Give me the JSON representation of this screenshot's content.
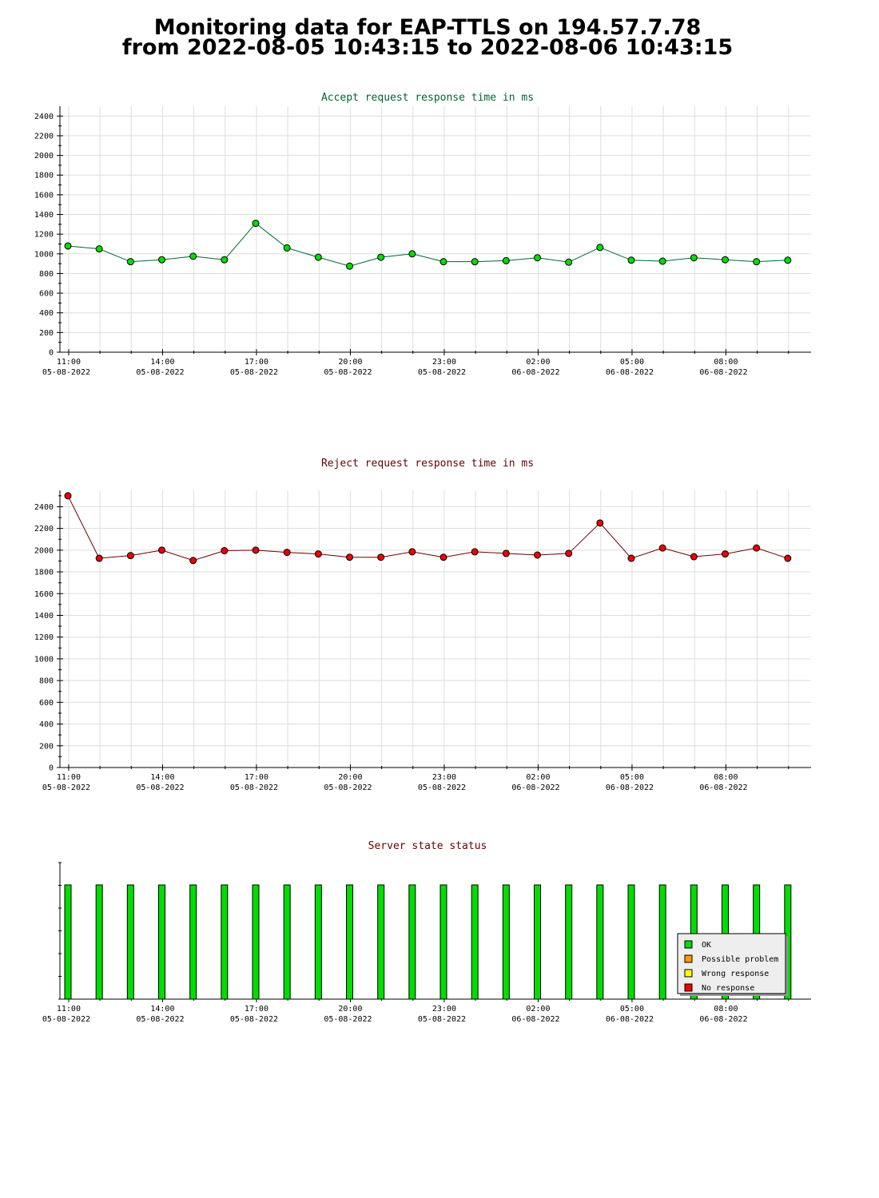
{
  "page": {
    "title_line1": "Monitoring data for EAP-TTLS on 194.57.7.78",
    "title_line2": "from 2022-08-05 10:43:15 to 2022-08-06 10:43:15"
  },
  "colors": {
    "accept_title": "#006633",
    "reject_title": "#660000",
    "status_title": "#660000",
    "accept_line": "#006633",
    "accept_marker": "#00dd00",
    "reject_line": "#660000",
    "reject_marker": "#ee0000",
    "grid": "#dddddd",
    "ok": "#00dd00",
    "possible_problem": "#ff9900",
    "wrong_response": "#ffff00",
    "no_response": "#ee0000"
  },
  "x_axis": {
    "times": [
      "11:00",
      "14:00",
      "17:00",
      "20:00",
      "23:00",
      "02:00",
      "05:00",
      "08:00"
    ],
    "dates": [
      "05-08-2022",
      "05-08-2022",
      "05-08-2022",
      "05-08-2022",
      "05-08-2022",
      "06-08-2022",
      "06-08-2022",
      "06-08-2022"
    ]
  },
  "chart_data": [
    {
      "type": "line",
      "title": "Accept request response time in ms",
      "x": [
        "2022-08-05 10:43:15",
        "2022-08-05 11:43:15",
        "2022-08-05 12:43:15",
        "2022-08-05 13:43:15",
        "2022-08-05 14:43:15",
        "2022-08-05 15:43:15",
        "2022-08-05 16:43:15",
        "2022-08-05 17:43:15",
        "2022-08-05 18:43:15",
        "2022-08-05 19:43:15",
        "2022-08-05 20:43:15",
        "2022-08-05 21:43:15",
        "2022-08-05 22:43:15",
        "2022-08-05 23:43:15",
        "2022-08-06 00:43:15",
        "2022-08-06 01:43:15",
        "2022-08-06 02:43:15",
        "2022-08-06 03:43:15",
        "2022-08-06 04:43:15",
        "2022-08-06 05:43:15",
        "2022-08-06 06:43:15",
        "2022-08-06 07:43:15",
        "2022-08-06 08:43:15",
        "2022-08-06 09:43:15"
      ],
      "values": [
        1080,
        1050,
        920,
        940,
        975,
        940,
        1310,
        1060,
        965,
        875,
        965,
        1000,
        920,
        920,
        930,
        960,
        915,
        1065,
        935,
        925,
        960,
        940,
        920,
        935
      ],
      "ylim": [
        0,
        2500
      ],
      "yticks": [
        0,
        200,
        400,
        600,
        800,
        1000,
        1200,
        1400,
        1600,
        1800,
        2000,
        2200,
        2400
      ],
      "grid": true
    },
    {
      "type": "line",
      "title": "Reject request response time in ms",
      "x": [
        "2022-08-05 10:43:15",
        "2022-08-05 11:43:15",
        "2022-08-05 12:43:15",
        "2022-08-05 13:43:15",
        "2022-08-05 14:43:15",
        "2022-08-05 15:43:15",
        "2022-08-05 16:43:15",
        "2022-08-05 17:43:15",
        "2022-08-05 18:43:15",
        "2022-08-05 19:43:15",
        "2022-08-05 20:43:15",
        "2022-08-05 21:43:15",
        "2022-08-05 22:43:15",
        "2022-08-05 23:43:15",
        "2022-08-06 00:43:15",
        "2022-08-06 01:43:15",
        "2022-08-06 02:43:15",
        "2022-08-06 03:43:15",
        "2022-08-06 04:43:15",
        "2022-08-06 05:43:15",
        "2022-08-06 06:43:15",
        "2022-08-06 07:43:15",
        "2022-08-06 08:43:15",
        "2022-08-06 09:43:15"
      ],
      "values": [
        2500,
        1925,
        1950,
        2000,
        1905,
        1995,
        2000,
        1980,
        1965,
        1935,
        1935,
        1985,
        1935,
        1985,
        1970,
        1955,
        1970,
        2250,
        1925,
        2020,
        1940,
        1965,
        2020,
        1925
      ],
      "ylim": [
        0,
        2550
      ],
      "yticks": [
        0,
        200,
        400,
        600,
        800,
        1000,
        1200,
        1400,
        1600,
        1800,
        2000,
        2200,
        2400
      ],
      "grid": true
    },
    {
      "type": "bar",
      "title": "Server state status",
      "x": [
        "2022-08-05 10:43:15",
        "2022-08-05 11:43:15",
        "2022-08-05 12:43:15",
        "2022-08-05 13:43:15",
        "2022-08-05 14:43:15",
        "2022-08-05 15:43:15",
        "2022-08-05 16:43:15",
        "2022-08-05 17:43:15",
        "2022-08-05 18:43:15",
        "2022-08-05 19:43:15",
        "2022-08-05 20:43:15",
        "2022-08-05 21:43:15",
        "2022-08-05 22:43:15",
        "2022-08-05 23:43:15",
        "2022-08-06 00:43:15",
        "2022-08-06 01:43:15",
        "2022-08-06 02:43:15",
        "2022-08-06 03:43:15",
        "2022-08-06 04:43:15",
        "2022-08-06 05:43:15",
        "2022-08-06 06:43:15",
        "2022-08-06 07:43:15",
        "2022-08-06 08:43:15",
        "2022-08-06 09:43:15"
      ],
      "states": [
        "OK",
        "OK",
        "OK",
        "OK",
        "OK",
        "OK",
        "OK",
        "OK",
        "OK",
        "OK",
        "OK",
        "OK",
        "OK",
        "OK",
        "OK",
        "OK",
        "OK",
        "OK",
        "OK",
        "OK",
        "OK",
        "OK",
        "OK",
        "OK"
      ],
      "legend": [
        {
          "label": "OK",
          "color": "#00dd00"
        },
        {
          "label": "Possible problem",
          "color": "#ff9900"
        },
        {
          "label": "Wrong response",
          "color": "#ffff00"
        },
        {
          "label": "No response",
          "color": "#ee0000"
        }
      ],
      "legend_position": "bottom-right",
      "grid": false
    }
  ]
}
